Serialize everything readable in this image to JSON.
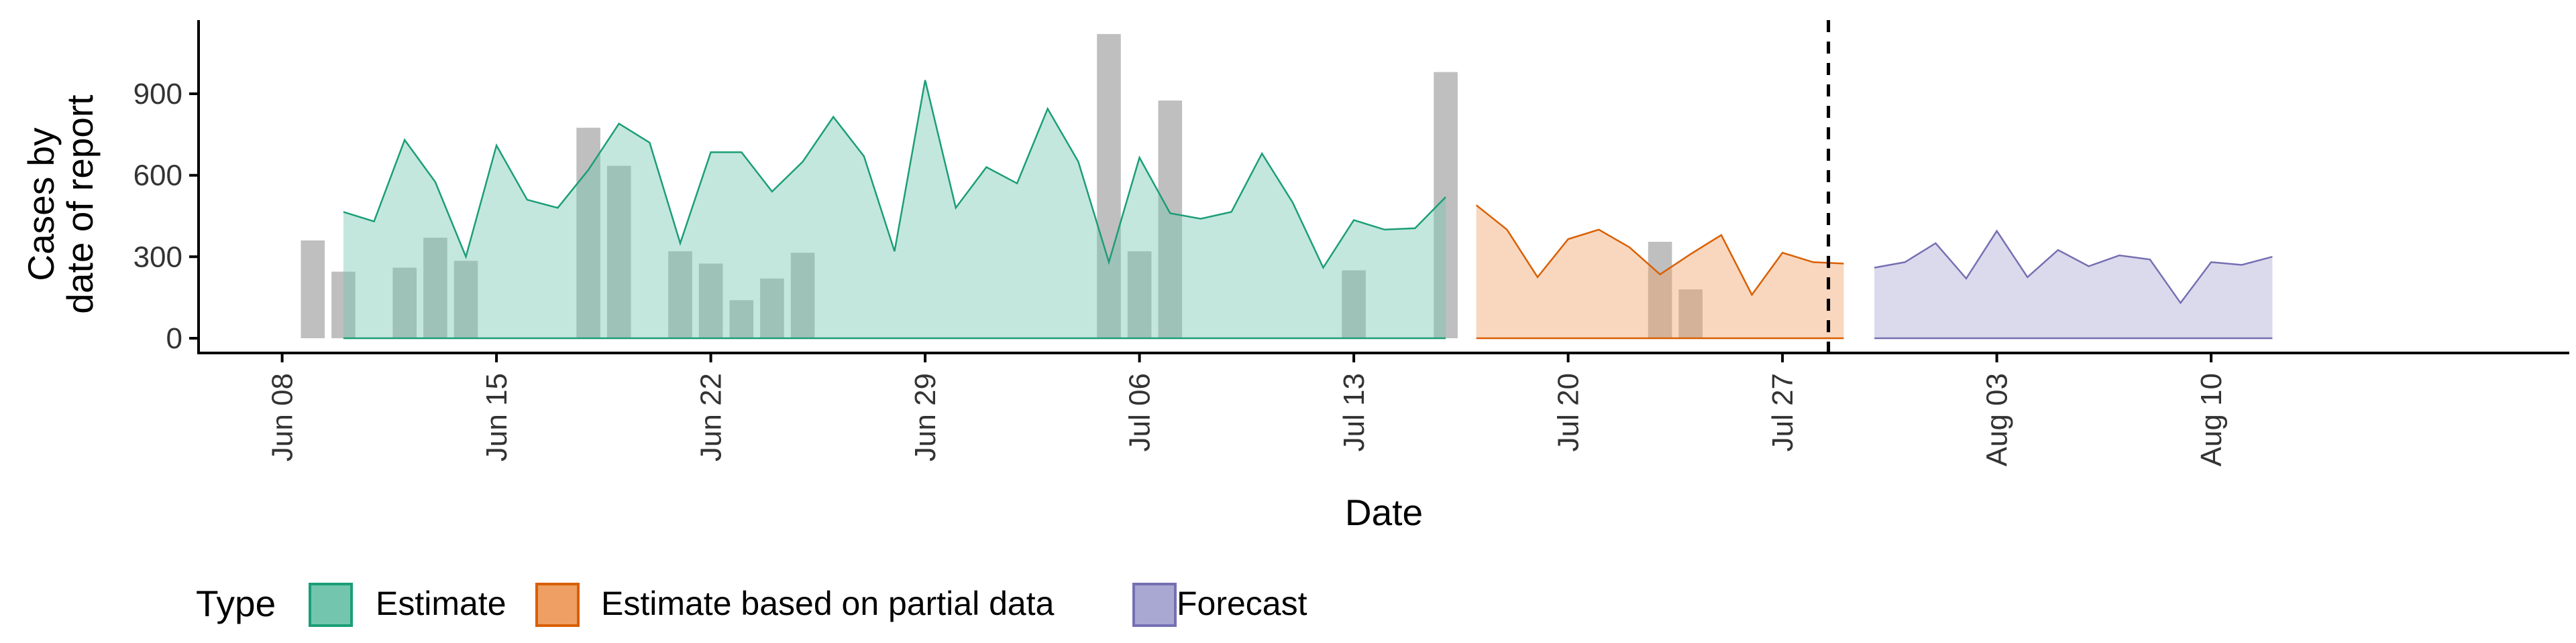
{
  "chart_data": {
    "type": "area",
    "xlabel": "Date",
    "ylabel_lines": [
      "Cases by",
      "date of report"
    ],
    "x_ticks": [
      "Jun 08",
      "Jun 15",
      "Jun 22",
      "Jun 29",
      "Jul 06",
      "Jul 13",
      "Jul 20",
      "Jul 27",
      "Aug 03",
      "Aug 10"
    ],
    "x_range": [
      "2020-06-07",
      "2020-08-16"
    ],
    "y_ticks": [
      0,
      300,
      600,
      900
    ],
    "ylim": [
      -50,
      1200
    ],
    "forecast_start": "2020-07-29",
    "grid": false,
    "legend": {
      "title": "Type",
      "position": "bottom-left",
      "items": [
        {
          "label": "Estimate",
          "fill": "#73c6ad",
          "stroke": "#1b9e77"
        },
        {
          "label": "Estimate based on partial data",
          "fill": "#ef9f63",
          "stroke": "#d95f02"
        },
        {
          "label": "Forecast",
          "fill": "#a9a8d2",
          "stroke": "#7570b3"
        }
      ]
    },
    "bars_color": "#a6a6a6",
    "bars": [
      {
        "date": "2020-06-09",
        "value": 360
      },
      {
        "date": "2020-06-10",
        "value": 245
      },
      {
        "date": "2020-06-12",
        "value": 260
      },
      {
        "date": "2020-06-13",
        "value": 370
      },
      {
        "date": "2020-06-14",
        "value": 285
      },
      {
        "date": "2020-06-18",
        "value": 775
      },
      {
        "date": "2020-06-19",
        "value": 635
      },
      {
        "date": "2020-06-21",
        "value": 320
      },
      {
        "date": "2020-06-22",
        "value": 275
      },
      {
        "date": "2020-06-23",
        "value": 140
      },
      {
        "date": "2020-06-24",
        "value": 220
      },
      {
        "date": "2020-06-25",
        "value": 315
      },
      {
        "date": "2020-07-05",
        "value": 1120
      },
      {
        "date": "2020-07-06",
        "value": 320
      },
      {
        "date": "2020-07-07",
        "value": 875
      },
      {
        "date": "2020-07-13",
        "value": 250
      },
      {
        "date": "2020-07-16",
        "value": 980
      },
      {
        "date": "2020-07-23",
        "value": 355
      },
      {
        "date": "2020-07-24",
        "value": 180
      }
    ],
    "series": [
      {
        "name": "Estimate",
        "start": "2020-06-10",
        "values": [
          465,
          430,
          730,
          575,
          300,
          710,
          510,
          480,
          620,
          790,
          720,
          350,
          685,
          685,
          540,
          650,
          815,
          670,
          320,
          950,
          480,
          630,
          570,
          845,
          650,
          280,
          665,
          460,
          440,
          465,
          680,
          500,
          260,
          435,
          400,
          405,
          520
        ]
      },
      {
        "name": "Estimate based on partial data",
        "start": "2020-07-17",
        "values": [
          490,
          400,
          225,
          365,
          400,
          335,
          235,
          310,
          380,
          160,
          315,
          280,
          275
        ]
      },
      {
        "name": "Forecast",
        "start": "2020-07-30",
        "values": [
          260,
          280,
          350,
          220,
          395,
          225,
          325,
          265,
          305,
          290,
          130,
          280,
          270,
          300
        ]
      }
    ]
  }
}
